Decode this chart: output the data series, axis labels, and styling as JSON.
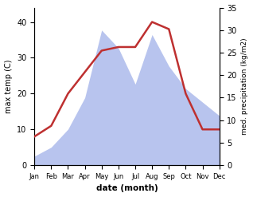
{
  "months": [
    "Jan",
    "Feb",
    "Mar",
    "Apr",
    "May",
    "Jun",
    "Jul",
    "Aug",
    "Sep",
    "Oct",
    "Nov",
    "Dec"
  ],
  "temperature": [
    8,
    11,
    20,
    26,
    32,
    33,
    33,
    40,
    38,
    20,
    10,
    10
  ],
  "precipitation": [
    2,
    4,
    8,
    15,
    30,
    26,
    18,
    29,
    22,
    17,
    14,
    11
  ],
  "temp_color": "#be3030",
  "precip_color_fill": "#b8c4ee",
  "title": "",
  "xlabel": "date (month)",
  "ylabel_left": "max temp (C)",
  "ylabel_right": "med. precipitation (kg/m2)",
  "ylim_left": [
    0,
    44
  ],
  "ylim_right": [
    0,
    35
  ],
  "yticks_left": [
    0,
    10,
    20,
    30,
    40
  ],
  "yticks_right": [
    0,
    5,
    10,
    15,
    20,
    25,
    30,
    35
  ],
  "figsize": [
    3.18,
    2.47
  ],
  "dpi": 100
}
